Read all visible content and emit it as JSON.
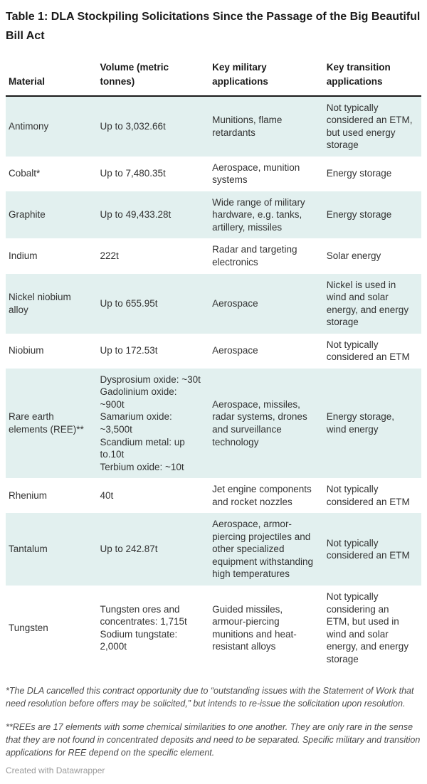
{
  "chart_data": {
    "type": "table",
    "title": "Table 1: DLA Stockpiling Solicitations Since the Passage of the Big Beautiful Bill Act",
    "columns": [
      "Material",
      "Volume (metric tonnes)",
      "Key military applications",
      "Key transition applications"
    ],
    "rows": [
      {
        "material": "Antimony",
        "volume": "Up to 3,032.66t",
        "military": "Munitions, flame retardants",
        "transition": "Not typically considered an ETM, but used energy storage",
        "shaded": true
      },
      {
        "material": "Cobalt*",
        "volume": "Up to 7,480.35t",
        "military": "Aerospace, munition systems",
        "transition": "Energy storage",
        "shaded": false
      },
      {
        "material": "Graphite",
        "volume": "Up to 49,433.28t",
        "military": "Wide range of military hardware, e.g. tanks, artillery, missiles",
        "transition": "Energy storage",
        "shaded": true
      },
      {
        "material": "Indium",
        "volume": "222t",
        "military": "Radar and targeting electronics",
        "transition": "Solar energy",
        "shaded": false
      },
      {
        "material": "Nickel niobium alloy",
        "volume": "Up to 655.95t",
        "military": "Aerospace",
        "transition": "Nickel is used in wind and solar energy, and energy storage",
        "shaded": true
      },
      {
        "material": "Niobium",
        "volume": "Up to 172.53t",
        "military": "Aerospace",
        "transition": "Not typically considered an ETM",
        "shaded": false
      },
      {
        "material": "Rare earth elements (REE)**",
        "volume": "Dysprosium oxide: ~30t\nGadolinium oxide: ~900t\nSamarium oxide: ~3,500t\nScandium metal: up to.10t\nTerbium oxide: ~10t",
        "military": "Aerospace, missiles, radar systems, drones and surveillance technology",
        "transition": "Energy storage, wind energy",
        "shaded": true
      },
      {
        "material": "Rhenium",
        "volume": "40t",
        "military": "Jet engine components and rocket nozzles",
        "transition": "Not typically considered an ETM",
        "shaded": false
      },
      {
        "material": "Tantalum",
        "volume": "Up to 242.87t",
        "military": "Aerospace, armor-piercing projectiles and other specialized equipment withstanding high temperatures",
        "transition": "Not typically considered an ETM",
        "shaded": true
      },
      {
        "material": "Tungsten",
        "volume": "Tungsten ores and concentrates: 1,715t\nSodium tungstate: 2,000t",
        "military": "Guided missiles, armour-piercing munitions and heat-resistant alloys",
        "transition": "Not typically considering an ETM, but used in wind and solar energy, and energy storage",
        "shaded": false
      }
    ],
    "footnotes": [
      "*The DLA cancelled this contract opportunity due to “outstanding issues with the Statement of Work that need resolution before offers may be solicited,” but intends to re-issue the solicitation upon resolution.",
      "**REEs are 17 elements with some chemical similarities to one another. They are only rare in the sense that they are not found in concentrated deposits and need to be separated. Specific military and transition applications for REE depend on the specific element."
    ],
    "credit": "Created with Datawrapper",
    "colors": {
      "row_shade": "#e2f0ef",
      "header_rule": "#1a1a1a",
      "body_text": "#333333",
      "heading_text": "#1a1a1a",
      "footnote_text": "#4a4a4a",
      "credit_text": "#9a9a9a"
    },
    "layout": {
      "legend_position": "none",
      "grid": false
    }
  }
}
